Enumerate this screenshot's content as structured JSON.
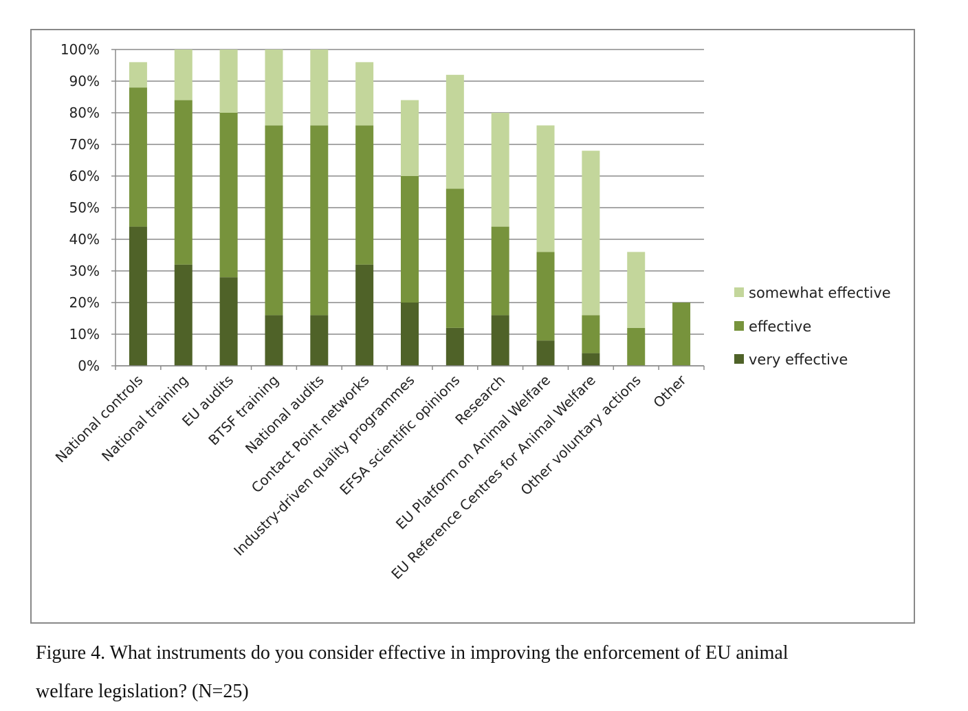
{
  "chart_data": {
    "type": "bar",
    "stacked": true,
    "categories": [
      "National controls",
      "National training",
      "EU audits",
      "BTSF training",
      "National audits",
      "Contact Point networks",
      "Industry-driven quality programmes",
      "EFSA scientific opinions",
      "Research",
      "EU Platform on Animal Welfare",
      "EU Reference Centres for Animal Welfare",
      "Other voluntary actions",
      "Other"
    ],
    "series": [
      {
        "name": "very effective",
        "color": "#4f6228",
        "values": [
          44,
          32,
          28,
          16,
          16,
          32,
          20,
          12,
          16,
          8,
          4,
          0,
          0
        ]
      },
      {
        "name": "effective",
        "color": "#77933c",
        "values": [
          44,
          52,
          52,
          60,
          60,
          44,
          40,
          44,
          28,
          28,
          12,
          12,
          20
        ]
      },
      {
        "name": "somewhat effective",
        "color": "#c3d69b",
        "values": [
          8,
          16,
          20,
          24,
          24,
          20,
          24,
          36,
          36,
          40,
          52,
          24,
          0
        ]
      }
    ],
    "legend_order": [
      "somewhat effective",
      "effective",
      "very effective"
    ],
    "ylim": [
      0,
      100
    ],
    "yticks": [
      "0%",
      "10%",
      "20%",
      "30%",
      "40%",
      "50%",
      "60%",
      "70%",
      "80%",
      "90%",
      "100%"
    ],
    "grid": true,
    "legend": "right",
    "xlabel": "",
    "ylabel": "",
    "title": ""
  },
  "caption": {
    "line1": "Figure 4. What instruments do you consider effective in improving the enforcement of EU animal",
    "line2": "welfare legislation? (N=25)"
  }
}
